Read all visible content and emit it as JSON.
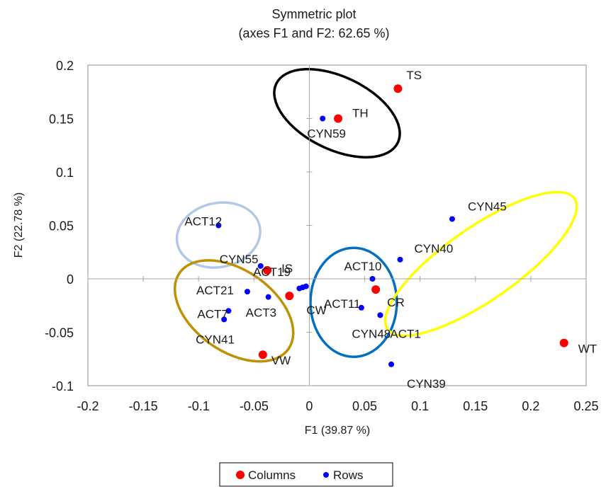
{
  "chart_data": {
    "type": "scatter",
    "title": "Symmetric plot",
    "subtitle": "(axes F1 and F2: 62.65 %)",
    "xlabel": "F1 (39.87 %)",
    "ylabel": "F2 (22.78 %)",
    "xlim": [
      -0.2,
      0.25
    ],
    "ylim": [
      -0.1,
      0.2
    ],
    "x_ticks": [
      -0.2,
      -0.15,
      -0.1,
      -0.05,
      0,
      0.05,
      0.1,
      0.15,
      0.2,
      0.25
    ],
    "x_tick_labels": [
      "-0.2",
      "-0.15",
      "-0.1",
      "-0.05",
      "0",
      "0.05",
      "0.1",
      "0.15",
      "0.2",
      "0.25"
    ],
    "y_ticks": [
      -0.1,
      -0.05,
      0,
      0.05,
      0.1,
      0.15,
      0.2
    ],
    "y_tick_labels": [
      "-0.1",
      "-0.05",
      "0",
      "0.05",
      "0.1",
      "0.15",
      "0.2"
    ],
    "grid": false,
    "legend_position": "bottom",
    "series": [
      {
        "name": "Columns",
        "color": "#ff0000",
        "points": [
          {
            "label": "TS",
            "x": 0.08,
            "y": 0.178
          },
          {
            "label": "TH",
            "x": 0.026,
            "y": 0.15
          },
          {
            "label": "IS",
            "x": -0.038,
            "y": 0.008
          },
          {
            "label": "CW",
            "x": -0.018,
            "y": -0.016
          },
          {
            "label": "CR",
            "x": 0.06,
            "y": -0.01
          },
          {
            "label": "VW",
            "x": -0.042,
            "y": -0.071
          },
          {
            "label": "WT",
            "x": 0.23,
            "y": -0.06
          }
        ]
      },
      {
        "name": "Rows",
        "color": "#0000ff",
        "points": [
          {
            "label": "CYN59",
            "x": 0.012,
            "y": 0.15
          },
          {
            "label": "ACT12",
            "x": -0.082,
            "y": 0.05
          },
          {
            "label": "CYN55",
            "x": -0.044,
            "y": 0.012
          },
          {
            "label": "ACT19",
            "x": -0.006,
            "y": -0.008
          },
          {
            "label": "ACT21",
            "x": -0.056,
            "y": -0.012
          },
          {
            "label": "ACT3",
            "x": -0.037,
            "y": -0.017
          },
          {
            "label": "ACT7",
            "x": -0.073,
            "y": -0.03
          },
          {
            "label": "CYN41",
            "x": -0.077,
            "y": -0.038
          },
          {
            "label": "CYN45",
            "x": 0.129,
            "y": 0.056
          },
          {
            "label": "CYN40",
            "x": 0.082,
            "y": 0.018
          },
          {
            "label": "ACT10",
            "x": 0.057,
            "y": 0.0
          },
          {
            "label": "ACT11",
            "x": 0.047,
            "y": -0.027
          },
          {
            "label": "CYN48",
            "x": 0.064,
            "y": -0.034
          },
          {
            "label": "ACT1",
            "x": 0.064,
            "y": -0.034
          },
          {
            "label": "CYN39",
            "x": 0.074,
            "y": -0.08
          },
          {
            "label": "",
            "x": -0.009,
            "y": -0.009
          },
          {
            "label": "",
            "x": -0.003,
            "y": -0.007
          }
        ]
      }
    ],
    "ellipses": [
      {
        "name": "black-group",
        "color": "#000000",
        "cx": 0.025,
        "cy": 0.155,
        "rx": 0.061,
        "ry": 0.034,
        "angle_deg": 26
      },
      {
        "name": "lightblue-group",
        "color": "#b4c7e7",
        "cx": -0.082,
        "cy": 0.041,
        "rx": 0.038,
        "ry": 0.03,
        "angle_deg": -12
      },
      {
        "name": "gold-group",
        "color": "#bf9000",
        "cx": -0.068,
        "cy": -0.03,
        "rx": 0.06,
        "ry": 0.038,
        "angle_deg": 35
      },
      {
        "name": "blue-group",
        "color": "#0070c0",
        "cx": 0.04,
        "cy": -0.022,
        "rx": 0.039,
        "ry": 0.051,
        "angle_deg": 0
      },
      {
        "name": "yellow-group",
        "color": "#ffff00",
        "cx": 0.155,
        "cy": 0.014,
        "rx": 0.103,
        "ry": 0.034,
        "angle_deg": -35
      }
    ]
  }
}
